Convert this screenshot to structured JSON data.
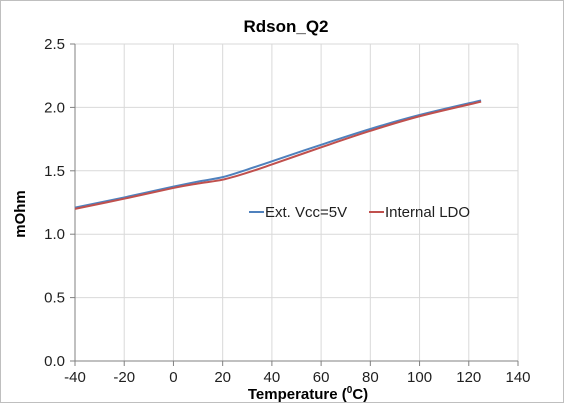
{
  "chart_data": {
    "type": "line",
    "title": "Rdson_Q2",
    "xlabel": "Temperature (",
    "xlabel_sup": "0",
    "xlabel_tail": "C)",
    "ylabel": "mOhm",
    "xlim": [
      -40,
      140
    ],
    "ylim": [
      0,
      2.5
    ],
    "x_ticks": [
      -40,
      -20,
      0,
      20,
      40,
      60,
      80,
      100,
      120,
      140
    ],
    "y_ticks": [
      "0.0",
      "0.5",
      "1.0",
      "1.5",
      "2.0",
      "2.5"
    ],
    "grid": true,
    "legend_position": "center-right",
    "series": [
      {
        "name": "Ext. Vcc=5V",
        "color": "#4f81bd",
        "x": [
          -40,
          -20,
          0,
          10,
          20,
          30,
          40,
          60,
          80,
          100,
          125
        ],
        "y": [
          1.21,
          1.29,
          1.375,
          1.415,
          1.45,
          1.51,
          1.575,
          1.705,
          1.83,
          1.94,
          2.055
        ]
      },
      {
        "name": "Internal LDO",
        "color": "#c0504d",
        "x": [
          -40,
          -20,
          0,
          10,
          20,
          30,
          40,
          60,
          80,
          100,
          125
        ],
        "y": [
          1.2,
          1.28,
          1.365,
          1.4,
          1.43,
          1.485,
          1.55,
          1.685,
          1.815,
          1.93,
          2.045
        ]
      }
    ]
  }
}
